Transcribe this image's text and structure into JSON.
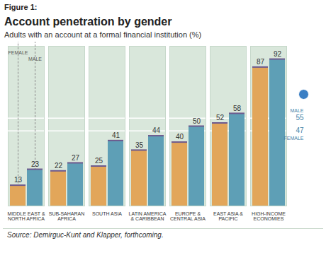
{
  "chart_data": {
    "type": "bar",
    "figure_label": "Figure 1:",
    "title": "Account penetration by gender",
    "subtitle": "Adults with an account at a formal financial institution (%)",
    "source": "Source: Demirguc-Kunt and Klapper, forthcoming.",
    "categories": [
      "MIDDLE EAST & NORTH AFRICA",
      "SUB-SAHARAN AFRICA",
      "SOUTH ASIA",
      "LATIN AMERICA & CARIBBEAN",
      "EUROPE & CENTRAL ASIA",
      "EAST ASIA & PACIFIC",
      "HIGH-INCOME ECONOMIES"
    ],
    "series": [
      {
        "name": "FEMALE",
        "color": "#e2a65a",
        "values": [
          13,
          22,
          25,
          35,
          40,
          52,
          87
        ]
      },
      {
        "name": "MALE",
        "color": "#5e9fb6",
        "values": [
          23,
          27,
          41,
          44,
          50,
          58,
          92
        ]
      }
    ],
    "ylim": [
      0,
      100
    ],
    "tick_labels": "x",
    "data_labels": true,
    "legend": "top-left",
    "reference_lines": [
      {
        "name": "MALE",
        "value": 55
      },
      {
        "name": "FEMALE",
        "value": 47
      }
    ]
  }
}
